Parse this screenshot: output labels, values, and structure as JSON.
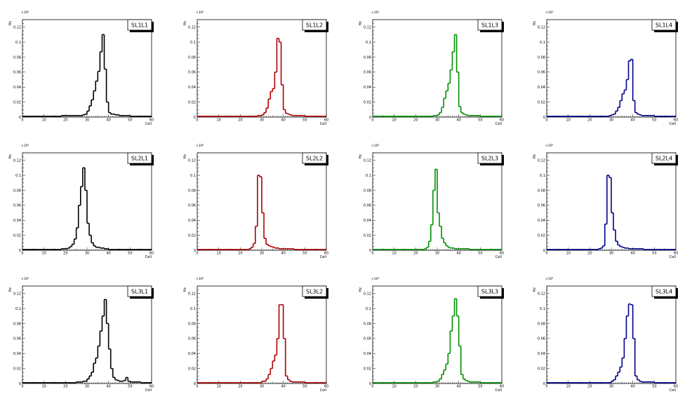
{
  "chart_data": [
    {
      "type": "line",
      "title": "SL1L1",
      "xlabel": "Cell",
      "ylabel": "Hz",
      "y_exponent": "×10⁶",
      "xlim": [
        0,
        60
      ],
      "ylim": [
        0,
        0.13
      ],
      "color": "#000000",
      "xticks": [
        "0",
        "10",
        "20",
        "30",
        "40",
        "50",
        "60"
      ],
      "yticks": [
        "0",
        "0.02",
        "0.04",
        "0.06",
        "0.08",
        "0.1",
        "0.12"
      ],
      "x": [
        0,
        5,
        10,
        15,
        18,
        20,
        23,
        25,
        27,
        28,
        29,
        30,
        31,
        32,
        33,
        34,
        35,
        36,
        37,
        38,
        39,
        40,
        41,
        42,
        43,
        44,
        45,
        48,
        50,
        55,
        60
      ],
      "values": [
        0.001,
        0.001,
        0.001,
        0.001,
        0.002,
        0.002,
        0.002,
        0.002,
        0.002,
        0.003,
        0.004,
        0.008,
        0.015,
        0.023,
        0.035,
        0.048,
        0.061,
        0.087,
        0.11,
        0.064,
        0.02,
        0.006,
        0.004,
        0.004,
        0.003,
        0.003,
        0.002,
        0.002,
        0.001,
        0.001,
        0.001
      ]
    },
    {
      "type": "line",
      "title": "SL1L2",
      "xlabel": "Cell",
      "ylabel": "Hz",
      "y_exponent": "×10⁶",
      "xlim": [
        0,
        60
      ],
      "ylim": [
        0,
        0.13
      ],
      "color": "#b00000",
      "xticks": [
        "0",
        "10",
        "20",
        "30",
        "40",
        "50",
        "60"
      ],
      "yticks": [
        "0",
        "0.02",
        "0.04",
        "0.06",
        "0.08",
        "0.1",
        "0.12"
      ],
      "x": [
        0,
        10,
        20,
        25,
        28,
        30,
        31,
        32,
        33,
        34,
        35,
        36,
        37,
        38,
        39,
        40,
        41,
        42,
        43,
        44,
        45,
        50,
        55,
        60
      ],
      "values": [
        0.001,
        0.001,
        0.001,
        0.001,
        0.002,
        0.003,
        0.006,
        0.012,
        0.024,
        0.034,
        0.038,
        0.06,
        0.105,
        0.1,
        0.043,
        0.01,
        0.005,
        0.004,
        0.003,
        0.002,
        0.002,
        0.001,
        0.001,
        0.001
      ]
    },
    {
      "type": "line",
      "title": "SL1L3",
      "xlabel": "Cell",
      "ylabel": "Hz",
      "y_exponent": "×10⁶",
      "xlim": [
        0,
        60
      ],
      "ylim": [
        0,
        0.13
      ],
      "color": "#009000",
      "xticks": [
        "0",
        "10",
        "20",
        "30",
        "40",
        "50",
        "60"
      ],
      "yticks": [
        "0",
        "0.02",
        "0.04",
        "0.06",
        "0.08",
        "0.1",
        "0.12"
      ],
      "x": [
        0,
        10,
        20,
        25,
        28,
        29,
        30,
        31,
        32,
        33,
        34,
        35,
        36,
        37,
        38,
        39,
        40,
        41,
        42,
        43,
        44,
        45,
        50,
        55,
        60
      ],
      "values": [
        0.001,
        0.001,
        0.001,
        0.001,
        0.002,
        0.002,
        0.003,
        0.006,
        0.013,
        0.025,
        0.035,
        0.045,
        0.063,
        0.087,
        0.11,
        0.06,
        0.014,
        0.006,
        0.004,
        0.003,
        0.002,
        0.002,
        0.001,
        0.001,
        0.001
      ]
    },
    {
      "type": "line",
      "title": "SL1L4",
      "xlabel": "Cell",
      "ylabel": "Hz",
      "y_exponent": "×10⁶",
      "xlim": [
        0,
        60
      ],
      "ylim": [
        0,
        0.13
      ],
      "color": "#00008c",
      "xticks": [
        "0",
        "10",
        "20",
        "30",
        "40",
        "50",
        "60"
      ],
      "yticks": [
        "0",
        "0.02",
        "0.04",
        "0.06",
        "0.08",
        "0.1",
        "0.12"
      ],
      "x": [
        0,
        10,
        20,
        25,
        29,
        30,
        31,
        32,
        33,
        34,
        35,
        36,
        37,
        38,
        39,
        40,
        41,
        42,
        43,
        44,
        45,
        50,
        55,
        60
      ],
      "values": [
        0.001,
        0.001,
        0.001,
        0.001,
        0.002,
        0.003,
        0.004,
        0.008,
        0.013,
        0.022,
        0.031,
        0.036,
        0.05,
        0.075,
        0.077,
        0.022,
        0.006,
        0.004,
        0.003,
        0.002,
        0.002,
        0.001,
        0.001,
        0.001
      ]
    },
    {
      "type": "line",
      "title": "SL2L1",
      "xlabel": "Cell",
      "ylabel": "Hz",
      "y_exponent": "×10⁶",
      "xlim": [
        0,
        60
      ],
      "ylim": [
        0,
        0.13
      ],
      "color": "#000000",
      "xticks": [
        "0",
        "10",
        "20",
        "30",
        "40",
        "50",
        "60"
      ],
      "yticks": [
        "0",
        "0.02",
        "0.04",
        "0.06",
        "0.08",
        "0.1",
        "0.12"
      ],
      "x": [
        0,
        10,
        15,
        18,
        20,
        21,
        22,
        23,
        24,
        25,
        26,
        27,
        28,
        29,
        30,
        31,
        32,
        33,
        34,
        35,
        36,
        38,
        40,
        45,
        50,
        55,
        60
      ],
      "values": [
        0.001,
        0.001,
        0.001,
        0.002,
        0.002,
        0.003,
        0.005,
        0.008,
        0.015,
        0.03,
        0.06,
        0.085,
        0.11,
        0.08,
        0.036,
        0.02,
        0.01,
        0.006,
        0.004,
        0.004,
        0.003,
        0.002,
        0.001,
        0.001,
        0.001,
        0.001,
        0.001
      ]
    },
    {
      "type": "line",
      "title": "SL2L2",
      "xlabel": "Cell",
      "ylabel": "Hz",
      "y_exponent": "×10⁶",
      "xlim": [
        0,
        60
      ],
      "ylim": [
        0,
        0.13
      ],
      "color": "#b00000",
      "xticks": [
        "0",
        "10",
        "20",
        "30",
        "40",
        "50",
        "60"
      ],
      "yticks": [
        "0",
        "0.02",
        "0.04",
        "0.06",
        "0.08",
        "0.1",
        "0.12"
      ],
      "x": [
        0,
        10,
        20,
        24,
        25,
        26,
        27,
        28,
        29,
        30,
        31,
        32,
        33,
        34,
        35,
        36,
        38,
        40,
        45,
        50,
        55,
        60
      ],
      "values": [
        0.001,
        0.001,
        0.001,
        0.002,
        0.004,
        0.009,
        0.032,
        0.1,
        0.098,
        0.05,
        0.016,
        0.008,
        0.006,
        0.005,
        0.004,
        0.003,
        0.002,
        0.002,
        0.001,
        0.001,
        0.001,
        0.001
      ]
    },
    {
      "type": "line",
      "title": "SL2L3",
      "xlabel": "Cell",
      "ylabel": "Hz",
      "y_exponent": "×10⁶",
      "xlim": [
        0,
        60
      ],
      "ylim": [
        0,
        0.13
      ],
      "color": "#009000",
      "xticks": [
        "0",
        "10",
        "20",
        "30",
        "40",
        "50",
        "60"
      ],
      "yticks": [
        "0",
        "0.02",
        "0.04",
        "0.06",
        "0.08",
        "0.1",
        "0.12"
      ],
      "x": [
        0,
        10,
        20,
        24,
        25,
        26,
        27,
        28,
        29,
        30,
        31,
        32,
        33,
        34,
        35,
        36,
        38,
        40,
        45,
        50,
        55,
        60
      ],
      "values": [
        0.001,
        0.001,
        0.001,
        0.002,
        0.004,
        0.012,
        0.034,
        0.08,
        0.108,
        0.05,
        0.032,
        0.016,
        0.01,
        0.006,
        0.004,
        0.003,
        0.002,
        0.002,
        0.001,
        0.001,
        0.001,
        0.001
      ]
    },
    {
      "type": "line",
      "title": "SL2L4",
      "xlabel": "Cell",
      "ylabel": "Hz",
      "y_exponent": "×10⁶",
      "xlim": [
        0,
        60
      ],
      "ylim": [
        0,
        0.13
      ],
      "color": "#00008c",
      "xticks": [
        "0",
        "10",
        "20",
        "30",
        "40",
        "50",
        "60"
      ],
      "yticks": [
        "0",
        "0.02",
        "0.04",
        "0.06",
        "0.08",
        "0.1",
        "0.12"
      ],
      "x": [
        0,
        10,
        20,
        24,
        25,
        26,
        27,
        28,
        29,
        30,
        31,
        32,
        33,
        34,
        35,
        36,
        38,
        40,
        45,
        50,
        55,
        60
      ],
      "values": [
        0.001,
        0.001,
        0.001,
        0.002,
        0.003,
        0.006,
        0.035,
        0.1,
        0.097,
        0.05,
        0.027,
        0.012,
        0.007,
        0.005,
        0.004,
        0.003,
        0.002,
        0.002,
        0.001,
        0.001,
        0.001,
        0.001
      ]
    },
    {
      "type": "line",
      "title": "SL3L1",
      "xlabel": "Cell",
      "ylabel": "Hz",
      "y_exponent": "×10⁶",
      "xlim": [
        0,
        60
      ],
      "ylim": [
        0,
        0.13
      ],
      "color": "#000000",
      "xticks": [
        "0",
        "10",
        "20",
        "30",
        "40",
        "50",
        "60"
      ],
      "yticks": [
        "0",
        "0.02",
        "0.04",
        "0.06",
        "0.08",
        "0.1",
        "0.12"
      ],
      "x": [
        0,
        10,
        15,
        20,
        25,
        28,
        30,
        31,
        32,
        33,
        34,
        35,
        36,
        37,
        38,
        39,
        40,
        41,
        42,
        43,
        44,
        45,
        46,
        47,
        48,
        49,
        50,
        55,
        60
      ],
      "values": [
        0.001,
        0.001,
        0.001,
        0.001,
        0.002,
        0.003,
        0.006,
        0.01,
        0.015,
        0.027,
        0.034,
        0.05,
        0.07,
        0.09,
        0.112,
        0.08,
        0.046,
        0.02,
        0.008,
        0.005,
        0.004,
        0.003,
        0.003,
        0.004,
        0.008,
        0.003,
        0.002,
        0.001,
        0.001
      ]
    },
    {
      "type": "line",
      "title": "SL3L2",
      "xlabel": "Cell",
      "ylabel": "Hz",
      "y_exponent": "×10⁶",
      "xlim": [
        0,
        60
      ],
      "ylim": [
        0,
        0.13
      ],
      "color": "#b00000",
      "xticks": [
        "0",
        "10",
        "20",
        "30",
        "40",
        "50",
        "60"
      ],
      "yticks": [
        "0",
        "0.02",
        "0.04",
        "0.06",
        "0.08",
        "0.1",
        "0.12"
      ],
      "x": [
        0,
        10,
        20,
        25,
        30,
        32,
        33,
        34,
        35,
        36,
        37,
        38,
        39,
        40,
        41,
        42,
        43,
        44,
        45,
        50,
        55,
        60
      ],
      "values": [
        0.001,
        0.001,
        0.001,
        0.001,
        0.003,
        0.006,
        0.012,
        0.02,
        0.03,
        0.038,
        0.06,
        0.105,
        0.105,
        0.06,
        0.01,
        0.005,
        0.003,
        0.002,
        0.002,
        0.001,
        0.001,
        0.001
      ]
    },
    {
      "type": "line",
      "title": "SL3L3",
      "xlabel": "Cell",
      "ylabel": "Hz",
      "y_exponent": "×10⁶",
      "xlim": [
        0,
        60
      ],
      "ylim": [
        0,
        0.13
      ],
      "color": "#009000",
      "xticks": [
        "0",
        "10",
        "20",
        "30",
        "40",
        "50",
        "60"
      ],
      "yticks": [
        "0",
        "0.02",
        "0.04",
        "0.06",
        "0.08",
        "0.1",
        "0.12"
      ],
      "x": [
        0,
        10,
        20,
        25,
        28,
        30,
        31,
        32,
        33,
        34,
        35,
        36,
        37,
        38,
        39,
        40,
        41,
        42,
        43,
        44,
        45,
        50,
        55,
        60
      ],
      "values": [
        0.001,
        0.001,
        0.001,
        0.001,
        0.002,
        0.003,
        0.006,
        0.012,
        0.018,
        0.026,
        0.04,
        0.07,
        0.09,
        0.113,
        0.09,
        0.05,
        0.012,
        0.006,
        0.004,
        0.003,
        0.002,
        0.001,
        0.001,
        0.001
      ]
    },
    {
      "type": "line",
      "title": "SL3L4",
      "xlabel": "Cell",
      "ylabel": "Hz",
      "y_exponent": "×10⁶",
      "xlim": [
        0,
        60
      ],
      "ylim": [
        0,
        0.13
      ],
      "color": "#00008c",
      "xticks": [
        "0",
        "10",
        "20",
        "30",
        "40",
        "50",
        "60"
      ],
      "yticks": [
        "0",
        "0.02",
        "0.04",
        "0.06",
        "0.08",
        "0.1",
        "0.12"
      ],
      "x": [
        0,
        10,
        20,
        25,
        30,
        31,
        32,
        33,
        34,
        35,
        36,
        37,
        38,
        39,
        40,
        41,
        42,
        43,
        44,
        45,
        50,
        55,
        60
      ],
      "values": [
        0.001,
        0.001,
        0.001,
        0.001,
        0.003,
        0.005,
        0.01,
        0.015,
        0.022,
        0.034,
        0.06,
        0.09,
        0.106,
        0.105,
        0.06,
        0.01,
        0.005,
        0.003,
        0.002,
        0.002,
        0.001,
        0.001,
        0.001
      ]
    }
  ]
}
